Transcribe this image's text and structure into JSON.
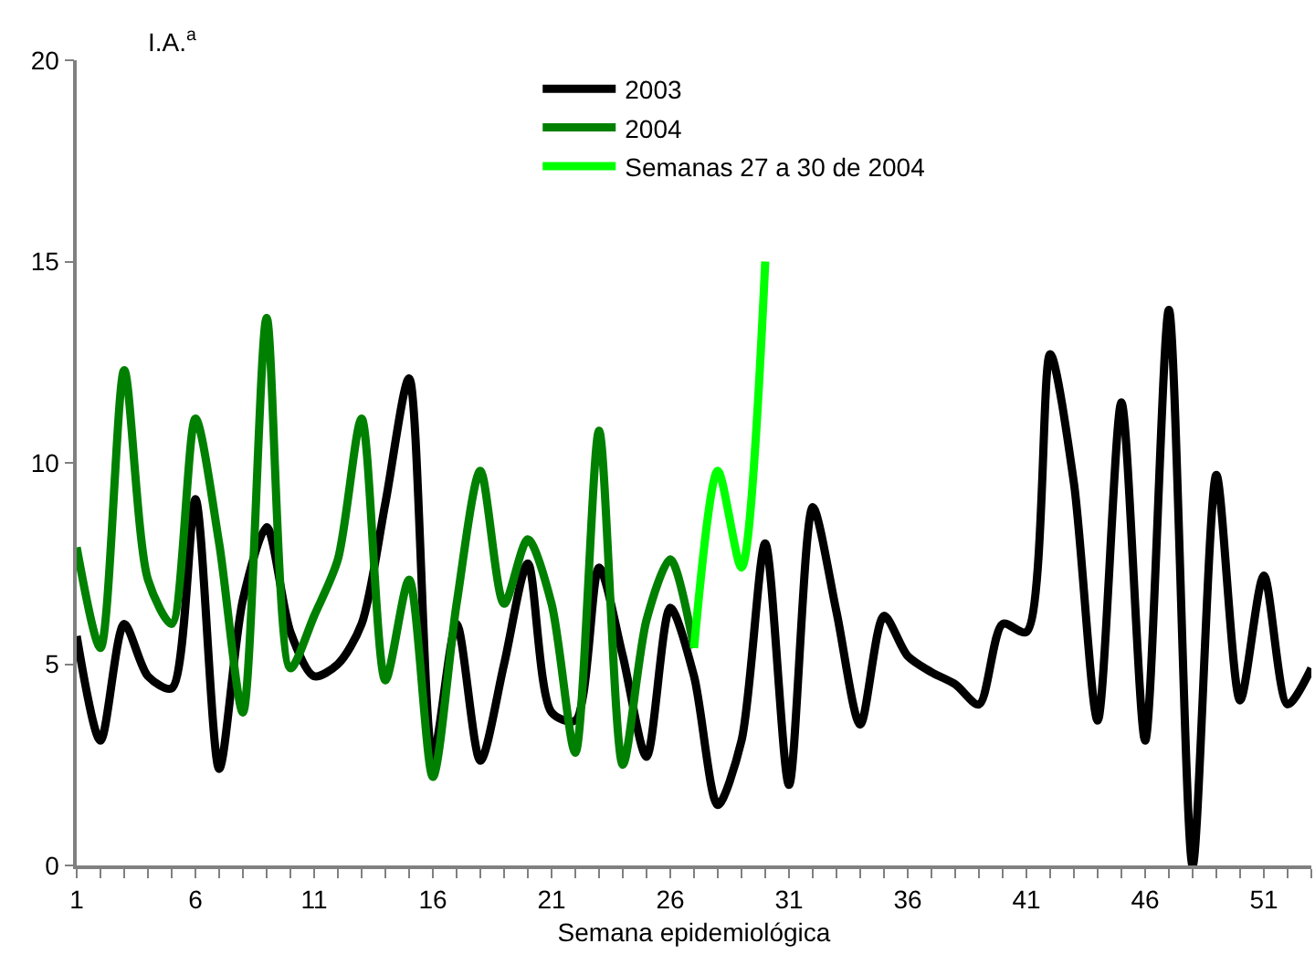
{
  "chart_data": {
    "type": "line",
    "xlabel": "Semana epidemiológica",
    "ylabel": "I.A.$^{a}$",
    "series": [
      {
        "name": "2003",
        "color": "#000000",
        "x": [
          1,
          2,
          3,
          4,
          5,
          6,
          7,
          8,
          9,
          10,
          11,
          12,
          13,
          14,
          15,
          16,
          17,
          18,
          19,
          20,
          21,
          22,
          23,
          24,
          25,
          26,
          27,
          28,
          29,
          30,
          31,
          32,
          33,
          34,
          35,
          36,
          37,
          38,
          39,
          40,
          41,
          42,
          43,
          44,
          45,
          46,
          47,
          48,
          49,
          50,
          51,
          52,
          53
        ],
        "values": [
          5.7,
          3.1,
          6.0,
          4.7,
          4.4,
          9.1,
          2.4,
          6.6,
          8.4,
          5.8,
          4.7,
          5.0,
          6.0,
          9.0,
          12.1,
          2.7,
          6.0,
          2.6,
          5.0,
          7.5,
          3.8,
          3.6,
          7.4,
          5.2,
          2.7,
          6.4,
          4.7,
          1.5,
          3.1,
          8.0,
          2.0,
          8.9,
          6.3,
          3.5,
          6.2,
          5.2,
          4.8,
          4.5,
          4.0,
          6.0,
          5.8,
          12.7,
          9.5,
          3.6,
          11.5,
          3.1,
          13.8,
          0.0,
          9.7,
          4.1,
          7.2,
          4.0,
          4.9
        ]
      },
      {
        "name": "2004",
        "color": "#008000",
        "x": [
          1,
          2,
          3,
          4,
          5,
          6,
          7,
          8,
          9,
          10,
          11,
          12,
          13,
          14,
          15,
          16,
          17,
          18,
          19,
          20,
          21,
          22,
          23,
          24,
          25,
          26,
          27
        ],
        "values": [
          7.9,
          5.4,
          12.3,
          7.1,
          6.0,
          11.1,
          8.0,
          3.8,
          13.6,
          4.9,
          6.2,
          7.6,
          11.1,
          4.6,
          7.1,
          2.2,
          6.5,
          9.8,
          6.5,
          8.1,
          6.5,
          2.8,
          10.8,
          2.5,
          6.1,
          7.6,
          5.4
        ]
      },
      {
        "name": "Semanas 27 a 30 de 2004",
        "color": "#00ff00",
        "x": [
          27,
          28,
          29,
          30
        ],
        "values": [
          5.4,
          9.8,
          7.4,
          15.0
        ]
      }
    ],
    "xlim": [
      1,
      53
    ],
    "xticks": [
      1,
      {
        "value": 2,
        "label": null
      },
      {
        "value": 3,
        "label": null
      },
      {
        "value": 4,
        "label": null
      },
      {
        "value": 5,
        "label": null
      },
      6,
      {
        "value": 7,
        "label": null
      },
      {
        "value": 8,
        "label": null
      },
      {
        "value": 9,
        "label": null
      },
      {
        "value": 10,
        "label": null
      },
      11,
      {
        "value": 12,
        "label": null
      },
      {
        "value": 13,
        "label": null
      },
      {
        "value": 14,
        "label": null
      },
      {
        "value": 15,
        "label": null
      },
      16,
      {
        "value": 17,
        "label": null
      },
      {
        "value": 18,
        "label": null
      },
      {
        "value": 19,
        "label": null
      },
      {
        "value": 20,
        "label": null
      },
      21,
      {
        "value": 22,
        "label": null
      },
      {
        "value": 23,
        "label": null
      },
      {
        "value": 24,
        "label": null
      },
      {
        "value": 25,
        "label": null
      },
      26,
      {
        "value": 27,
        "label": null
      },
      {
        "value": 28,
        "label": null
      },
      {
        "value": 29,
        "label": null
      },
      {
        "value": 30,
        "label": null
      },
      31,
      {
        "value": 32,
        "label": null
      },
      {
        "value": 33,
        "label": null
      },
      {
        "value": 34,
        "label": null
      },
      {
        "value": 35,
        "label": null
      },
      36,
      {
        "value": 37,
        "label": null
      },
      {
        "value": 38,
        "label": null
      },
      {
        "value": 39,
        "label": null
      },
      {
        "value": 40,
        "label": null
      },
      41,
      {
        "value": 42,
        "label": null
      },
      {
        "value": 43,
        "label": null
      },
      {
        "value": 44,
        "label": null
      },
      {
        "value": 45,
        "label": null
      },
      46,
      {
        "value": 47,
        "label": null
      },
      {
        "value": 48,
        "label": null
      },
      {
        "value": 49,
        "label": null
      },
      {
        "value": 50,
        "label": null
      },
      51,
      {
        "value": 52,
        "label": null
      },
      {
        "value": 53,
        "label": null
      }
    ],
    "ylim": [
      0,
      20
    ],
    "yticks": [
      0,
      5,
      10,
      15,
      20
    ],
    "legend": "top",
    "marker": "none",
    "line_style": "solid"
  }
}
